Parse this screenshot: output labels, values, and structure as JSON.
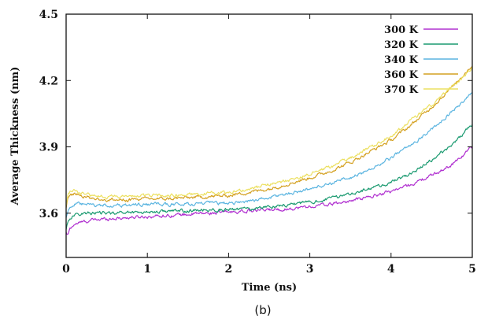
{
  "chart_data": {
    "type": "line",
    "xlabel": "Time (ns)",
    "ylabel": "Average Thickness (nm)",
    "xlim": [
      0,
      5
    ],
    "ylim": [
      3.4,
      4.5
    ],
    "xticks": [
      "0",
      "1",
      "2",
      "3",
      "4",
      "5"
    ],
    "yticks": [
      "3.6",
      "3.9",
      "4.2",
      "4.5"
    ],
    "grid": false,
    "legend_position": "top-right",
    "caption": "(b)",
    "series": [
      {
        "name": "300 K",
        "color": "#b030d0",
        "x": [
          0,
          0.02,
          0.05,
          0.1,
          0.2,
          0.35,
          0.5,
          0.75,
          1.0,
          1.25,
          1.5,
          1.75,
          2.0,
          2.25,
          2.5,
          2.75,
          3.0,
          3.25,
          3.5,
          3.75,
          4.0,
          4.25,
          4.5,
          4.75,
          5.0
        ],
        "y": [
          3.51,
          3.5,
          3.53,
          3.55,
          3.56,
          3.57,
          3.575,
          3.58,
          3.585,
          3.59,
          3.595,
          3.6,
          3.605,
          3.61,
          3.615,
          3.62,
          3.63,
          3.64,
          3.655,
          3.675,
          3.7,
          3.73,
          3.77,
          3.82,
          3.9
        ]
      },
      {
        "name": "320 K",
        "color": "#1a9a70",
        "x": [
          0,
          0.02,
          0.05,
          0.1,
          0.2,
          0.35,
          0.5,
          0.75,
          1.0,
          1.25,
          1.5,
          1.75,
          2.0,
          2.25,
          2.5,
          2.75,
          3.0,
          3.25,
          3.5,
          3.75,
          4.0,
          4.25,
          4.5,
          4.75,
          5.0
        ],
        "y": [
          3.53,
          3.56,
          3.58,
          3.59,
          3.6,
          3.6,
          3.6,
          3.605,
          3.605,
          3.61,
          3.61,
          3.615,
          3.615,
          3.62,
          3.63,
          3.64,
          3.65,
          3.665,
          3.69,
          3.71,
          3.74,
          3.78,
          3.84,
          3.91,
          4.0
        ]
      },
      {
        "name": "340 K",
        "color": "#5ab4e0",
        "x": [
          0,
          0.02,
          0.05,
          0.1,
          0.2,
          0.35,
          0.5,
          0.75,
          1.0,
          1.25,
          1.5,
          1.75,
          2.0,
          2.25,
          2.5,
          2.75,
          3.0,
          3.25,
          3.5,
          3.75,
          4.0,
          4.25,
          4.5,
          4.75,
          5.0
        ],
        "y": [
          3.58,
          3.61,
          3.63,
          3.64,
          3.64,
          3.635,
          3.635,
          3.635,
          3.64,
          3.64,
          3.64,
          3.645,
          3.645,
          3.655,
          3.67,
          3.69,
          3.71,
          3.735,
          3.76,
          3.8,
          3.85,
          3.91,
          3.98,
          4.06,
          4.14
        ]
      },
      {
        "name": "360 K",
        "color": "#d4a020",
        "x": [
          0,
          0.02,
          0.05,
          0.1,
          0.2,
          0.35,
          0.5,
          0.75,
          1.0,
          1.25,
          1.5,
          1.75,
          2.0,
          2.25,
          2.5,
          2.75,
          3.0,
          3.25,
          3.5,
          3.75,
          4.0,
          4.25,
          4.5,
          4.75,
          5.0
        ],
        "y": [
          3.62,
          3.66,
          3.68,
          3.69,
          3.68,
          3.665,
          3.66,
          3.66,
          3.665,
          3.665,
          3.67,
          3.675,
          3.68,
          3.695,
          3.71,
          3.735,
          3.76,
          3.79,
          3.83,
          3.88,
          3.93,
          4.0,
          4.08,
          4.17,
          4.27
        ]
      },
      {
        "name": "370 K",
        "color": "#ece060",
        "x": [
          0,
          0.02,
          0.05,
          0.1,
          0.2,
          0.35,
          0.5,
          0.75,
          1.0,
          1.25,
          1.5,
          1.75,
          2.0,
          2.25,
          2.5,
          2.75,
          3.0,
          3.25,
          3.5,
          3.75,
          4.0,
          4.25,
          4.5,
          4.75,
          5.0
        ],
        "y": [
          3.64,
          3.68,
          3.7,
          3.7,
          3.69,
          3.68,
          3.675,
          3.675,
          3.68,
          3.68,
          3.685,
          3.69,
          3.695,
          3.71,
          3.73,
          3.75,
          3.775,
          3.81,
          3.85,
          3.9,
          3.95,
          4.02,
          4.09,
          4.17,
          4.26
        ]
      }
    ]
  }
}
